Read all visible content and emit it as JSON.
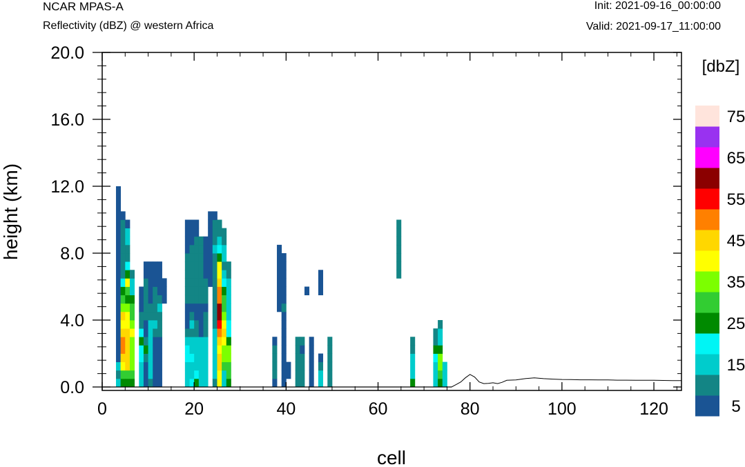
{
  "header": {
    "model": "NCAR MPAS-A",
    "field": "Reflectivity (dBZ) @ western Africa",
    "init": "Init: 2021-09-16_00:00:00",
    "valid": "Valid: 2021-09-17_11:00:00"
  },
  "chart_data": {
    "type": "heatmap",
    "xlabel": "cell",
    "ylabel": "height (km)",
    "xlim": [
      0,
      126
    ],
    "ylim": [
      0,
      20
    ],
    "xticks": [
      0,
      20,
      40,
      60,
      80,
      100,
      120
    ],
    "xtick_labels": [
      "0",
      "20",
      "40",
      "60",
      "80",
      "100",
      "120"
    ],
    "yticks": [
      0,
      4,
      8,
      12,
      16,
      20
    ],
    "ytick_labels": [
      "0.0",
      "4.0",
      "8.0",
      "12.0",
      "16.0",
      "20.0"
    ],
    "colorbar": {
      "title": "[dbZ]",
      "levels": [
        5,
        10,
        15,
        20,
        25,
        30,
        35,
        40,
        45,
        50,
        55,
        60,
        65,
        70,
        75
      ],
      "labels": [
        "5",
        "15",
        "25",
        "35",
        "45",
        "55",
        "65",
        "75"
      ],
      "colors": [
        "#1a5494",
        "#138585",
        "#00cccc",
        "#00f5f5",
        "#008a00",
        "#32cd32",
        "#7cff00",
        "#ffff00",
        "#ffd700",
        "#ff8000",
        "#ff0000",
        "#8b0000",
        "#ff00ff",
        "#9932f0",
        "#ffe4dc"
      ]
    },
    "cell_height_km": 0.5,
    "columns": [
      {
        "x": 3,
        "b": 0,
        "v": [
          15,
          10,
          15,
          5,
          5,
          5,
          5,
          5,
          5,
          5,
          5,
          5,
          5,
          5,
          5,
          5,
          5,
          5,
          5,
          5,
          5,
          5,
          5,
          5
        ]
      },
      {
        "x": 4,
        "b": 0,
        "v": [
          25,
          30,
          40,
          45,
          50,
          50,
          45,
          40,
          45,
          35,
          30,
          25,
          20,
          10,
          10,
          10,
          10,
          10,
          10,
          10,
          5
        ]
      },
      {
        "x": 5,
        "b": 0,
        "v": [
          25,
          30,
          45,
          45,
          45,
          45,
          45,
          40,
          40,
          35,
          25,
          30,
          40,
          25,
          20,
          10,
          10,
          15,
          15,
          5
        ]
      },
      {
        "x": 6,
        "b": 0,
        "v": [
          25,
          30,
          35,
          35,
          35,
          35,
          40,
          35,
          30,
          30,
          25,
          15,
          15,
          10
        ]
      },
      {
        "x": 8,
        "b": 0,
        "v": [
          15,
          15,
          15,
          20,
          20,
          25,
          20,
          10,
          10,
          5,
          5,
          5
        ]
      },
      {
        "x": 9,
        "b": 0,
        "v": [
          5,
          5,
          5,
          10,
          25,
          10,
          5,
          5,
          10,
          10,
          10,
          10,
          10,
          5,
          5
        ]
      },
      {
        "x": 10,
        "b": 0,
        "v": [
          10,
          15,
          15,
          15,
          15,
          15,
          15,
          15,
          10,
          10,
          5,
          5,
          5,
          5,
          5
        ]
      },
      {
        "x": 11,
        "b": 0,
        "v": [
          5,
          5,
          5,
          5,
          5,
          5,
          10,
          15,
          10,
          10,
          10,
          10,
          5,
          5,
          5
        ]
      },
      {
        "x": 12,
        "b": 0,
        "v": [
          5,
          5,
          5,
          5,
          5,
          5,
          10,
          10,
          10,
          15,
          10,
          5,
          5,
          5,
          5
        ]
      },
      {
        "x": 13,
        "b": 10,
        "v": [
          5,
          5,
          5
        ]
      },
      {
        "x": 18,
        "b": 0,
        "v": [
          15,
          15,
          15,
          20,
          20,
          15,
          10,
          5,
          5,
          5,
          10,
          10,
          10,
          10,
          10,
          10,
          5,
          5,
          5,
          5
        ]
      },
      {
        "x": 19,
        "b": 0,
        "v": [
          20,
          15,
          15,
          20,
          15,
          15,
          10,
          15,
          10,
          5,
          10,
          10,
          10,
          10,
          10,
          10,
          10,
          5,
          5,
          5
        ]
      },
      {
        "x": 20,
        "b": 0,
        "v": [
          25,
          20,
          15,
          15,
          15,
          15,
          10,
          10,
          5,
          5,
          10,
          10,
          10,
          10,
          10,
          10,
          10,
          10,
          5,
          5
        ]
      },
      {
        "x": 21,
        "b": 0,
        "v": [
          15,
          15,
          15,
          15,
          15,
          15,
          5,
          5,
          5,
          5,
          10,
          10,
          10,
          10,
          10,
          10,
          10,
          10
        ]
      },
      {
        "x": 22,
        "b": 0,
        "v": [
          15,
          15,
          15,
          15,
          15,
          15,
          10,
          10,
          10,
          5,
          10,
          10,
          10,
          5,
          5,
          5,
          5,
          5
        ]
      },
      {
        "x": 23,
        "b": 12,
        "v": [
          5,
          5,
          5,
          5,
          5,
          5,
          5,
          5,
          5
        ]
      },
      {
        "x": 24,
        "b": 0,
        "v": [
          10,
          15,
          15,
          15,
          15,
          15,
          15,
          10,
          10,
          10,
          10,
          10,
          10,
          10,
          10,
          10,
          15,
          10,
          10,
          10,
          5
        ]
      },
      {
        "x": 25,
        "b": 0,
        "v": [
          40,
          40,
          45,
          45,
          40,
          45,
          50,
          55,
          60,
          60,
          50,
          50,
          45,
          40,
          40,
          25,
          20,
          15,
          10,
          10
        ]
      },
      {
        "x": 26,
        "b": 0,
        "v": [
          15,
          15,
          30,
          35,
          35,
          40,
          45,
          40,
          35,
          30,
          30,
          25,
          20,
          15,
          10,
          15,
          15,
          10,
          10
        ]
      },
      {
        "x": 27,
        "b": 0,
        "v": [
          25,
          30,
          30,
          35,
          35,
          25,
          20,
          20,
          15,
          15,
          15,
          15,
          15,
          10,
          10
        ]
      },
      {
        "x": 37,
        "b": 0,
        "v": [
          5,
          10,
          10,
          10,
          10,
          5
        ]
      },
      {
        "x": 38,
        "b": 9,
        "v": [
          5,
          5,
          5,
          5,
          5,
          5,
          5,
          5
        ]
      },
      {
        "x": 39,
        "b": 0,
        "v": [
          5,
          5,
          5,
          5,
          5,
          5,
          5,
          5,
          5,
          10,
          5,
          5,
          5,
          5,
          5,
          5
        ]
      },
      {
        "x": 40,
        "b": 1,
        "v": [
          5,
          5
        ]
      },
      {
        "x": 42,
        "b": 0,
        "v": [
          10,
          10,
          10,
          10,
          10,
          10
        ]
      },
      {
        "x": 43,
        "b": 0,
        "v": [
          10,
          10,
          10,
          10,
          5,
          10
        ]
      },
      {
        "x": 44,
        "b": 11,
        "v": [
          5
        ]
      },
      {
        "x": 45,
        "b": 0,
        "v": [
          5,
          5,
          5,
          5,
          5,
          5
        ]
      },
      {
        "x": 47,
        "b": 0,
        "v": [
          15,
          15,
          10,
          5
        ]
      },
      {
        "x": 47,
        "b": 11,
        "v": [
          5,
          5,
          5
        ]
      },
      {
        "x": 49,
        "b": 0,
        "v": [
          10,
          10,
          10,
          10,
          10,
          10
        ]
      },
      {
        "x": 64,
        "b": 13,
        "v": [
          10,
          10,
          10,
          10,
          10,
          10,
          10
        ]
      },
      {
        "x": 67,
        "b": 0,
        "v": [
          25,
          15,
          15,
          15,
          10,
          10
        ]
      },
      {
        "x": 72,
        "b": 0,
        "v": [
          15,
          15,
          15,
          20,
          25,
          10,
          10
        ]
      },
      {
        "x": 73,
        "b": 0,
        "v": [
          25,
          30,
          35,
          35,
          25,
          15,
          15,
          10
        ]
      },
      {
        "x": 74,
        "b": 0,
        "v": [
          15,
          15,
          15
        ]
      }
    ],
    "terrain": {
      "x": [
        0,
        76,
        77,
        78,
        79,
        80,
        81,
        82,
        83,
        84,
        85,
        86,
        87,
        88,
        90,
        92,
        94,
        96,
        98,
        100,
        102,
        104,
        106,
        108,
        110,
        112,
        114,
        116,
        118,
        120,
        122,
        124,
        126
      ],
      "y": [
        0,
        0,
        0.15,
        0.3,
        0.55,
        0.75,
        0.6,
        0.3,
        0.2,
        0.22,
        0.25,
        0.2,
        0.28,
        0.4,
        0.42,
        0.5,
        0.55,
        0.5,
        0.47,
        0.45,
        0.44,
        0.43,
        0.43,
        0.42,
        0.42,
        0.41,
        0.41,
        0.4,
        0.4,
        0.4,
        0.39,
        0.38,
        0.38
      ]
    }
  }
}
